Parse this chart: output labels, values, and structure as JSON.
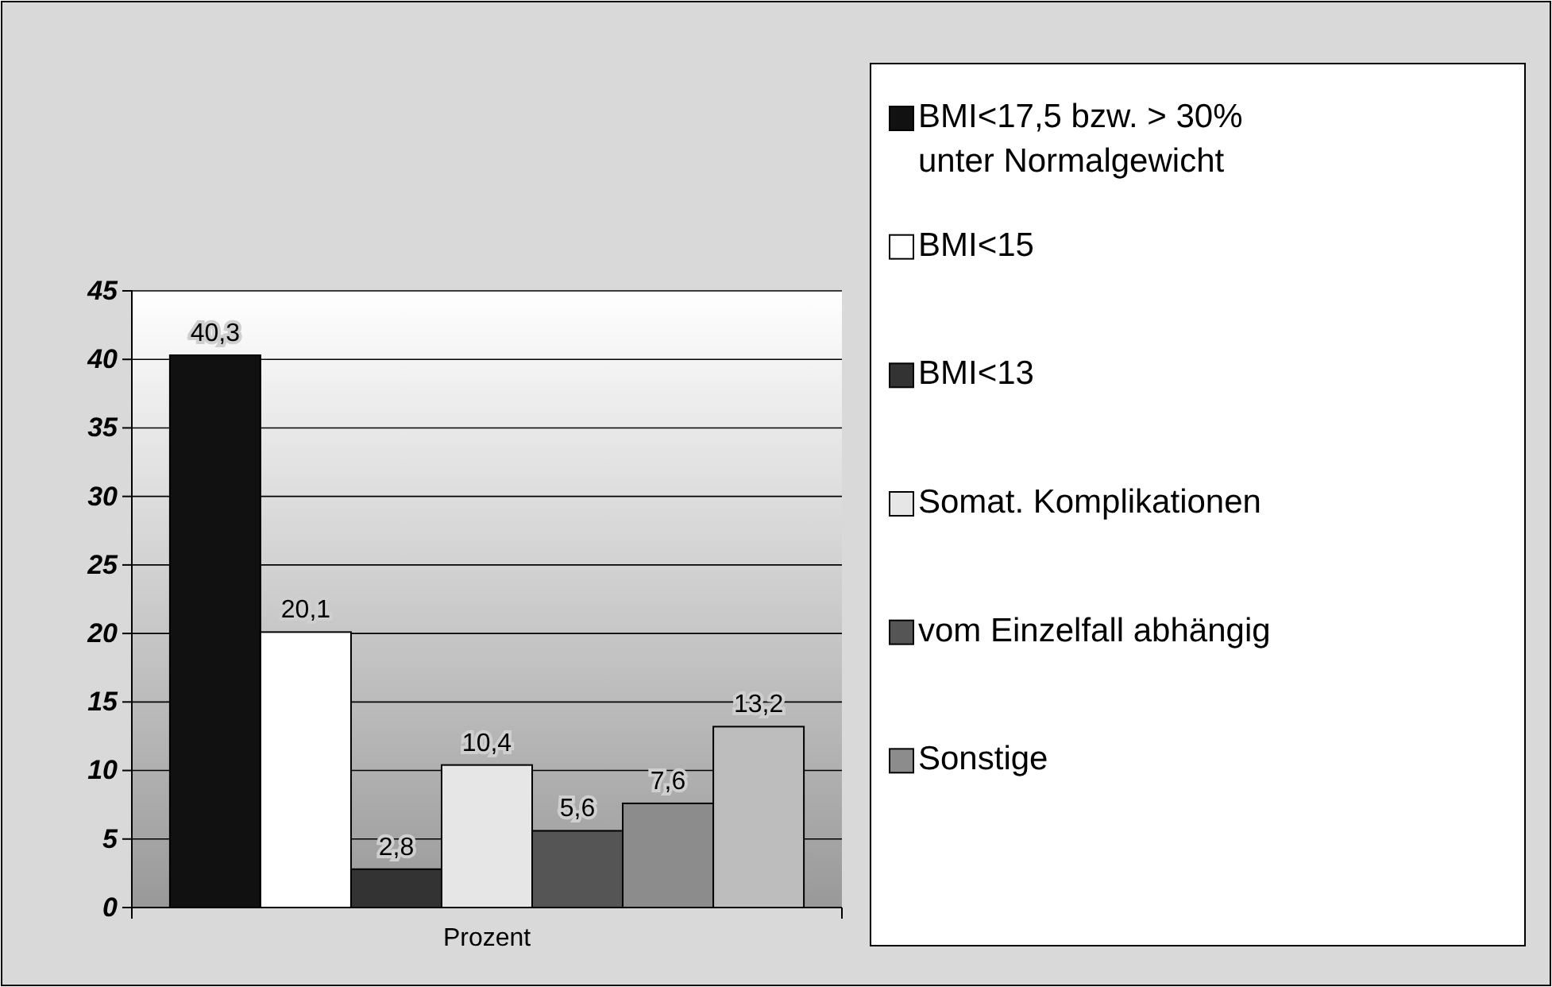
{
  "chart_data": {
    "type": "bar",
    "categories": [
      "Prozent"
    ],
    "series": [
      {
        "name": "BMI<17,5 bzw. > 30% unter Normalgewicht",
        "color": "#111111",
        "values": [
          40.3
        ],
        "value_labels": [
          "40,3"
        ]
      },
      {
        "name": "BMI<15",
        "color": "#ffffff",
        "values": [
          20.1
        ],
        "value_labels": [
          "20,1"
        ]
      },
      {
        "name": "BMI<13",
        "color": "#333333",
        "values": [
          2.8
        ],
        "value_labels": [
          "2,8"
        ]
      },
      {
        "name": "Somat. Komplikationen",
        "color": "#e6e6e6",
        "values": [
          10.4
        ],
        "value_labels": [
          "10,4"
        ]
      },
      {
        "name": "vom Einzelfall abhängig",
        "color": "#555555",
        "values": [
          5.6
        ],
        "value_labels": [
          "5,6"
        ]
      },
      {
        "name": "Sonstige",
        "color": "#8c8c8c",
        "values": [
          7.6
        ],
        "value_labels": [
          "7,6"
        ]
      },
      {
        "color": "#bdbdbd",
        "values": [
          13.2
        ],
        "value_labels": [
          "13,2"
        ]
      }
    ],
    "ylim": [
      0,
      45
    ],
    "yticks": [
      0,
      5,
      10,
      15,
      20,
      25,
      30,
      35,
      40,
      45
    ],
    "grid": "y",
    "legend": "right"
  }
}
